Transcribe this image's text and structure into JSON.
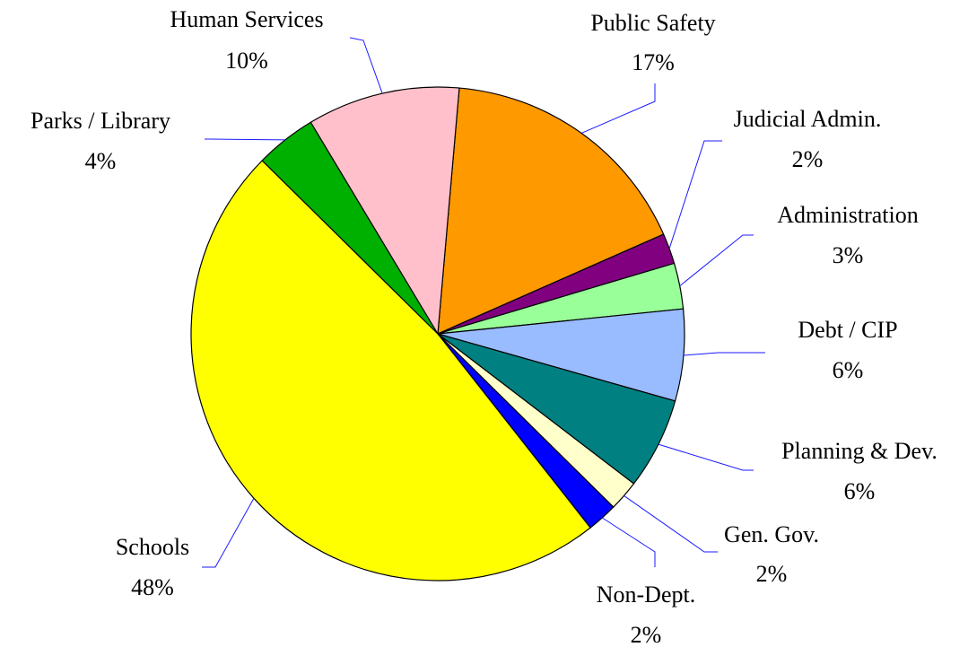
{
  "chart_data": {
    "type": "pie",
    "categories": [
      "Public Safety",
      "Judicial Admin.",
      "Administration",
      "Debt / CIP",
      "Planning & Dev.",
      "Gen. Gov.",
      "Non-Dept.",
      "Schools",
      "Parks / Library",
      "Human Services"
    ],
    "values": [
      17,
      2,
      3,
      6,
      6,
      2,
      2,
      48,
      4,
      10
    ],
    "value_labels": [
      "17%",
      "2%",
      "3%",
      "6%",
      "6%",
      "2%",
      "2%",
      "48%",
      "4%",
      "10%"
    ],
    "colors": [
      "#ff9900",
      "#800080",
      "#99ff99",
      "#99bbff",
      "#008080",
      "#ffffcc",
      "#0000ff",
      "#ffff00",
      "#00b000",
      "#ffc0cb"
    ]
  }
}
